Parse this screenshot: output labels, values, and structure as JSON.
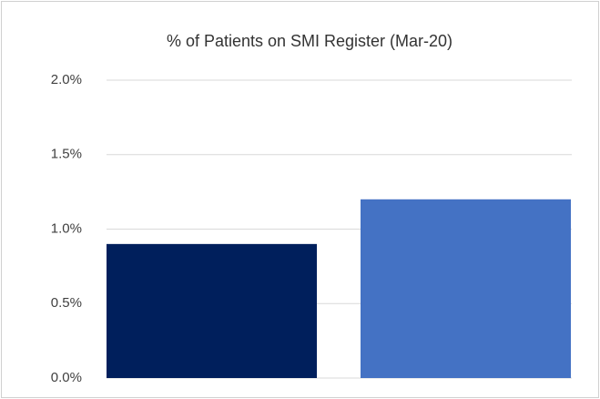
{
  "chart_data": {
    "type": "bar",
    "title": "% of Patients on SMI Register (Mar-20)",
    "categories": [
      null,
      null
    ],
    "values": [
      0.9,
      1.2
    ],
    "colors": [
      "#001f5c",
      "#4472c4"
    ],
    "ylim": [
      0,
      2
    ],
    "yticks": [
      {
        "value": 0,
        "label": "0.0%"
      },
      {
        "value": 0.5,
        "label": "0.5%"
      },
      {
        "value": 1,
        "label": "1.0%"
      },
      {
        "value": 1.5,
        "label": "1.5%"
      },
      {
        "value": 2,
        "label": "2.0%"
      }
    ],
    "grid": true
  }
}
